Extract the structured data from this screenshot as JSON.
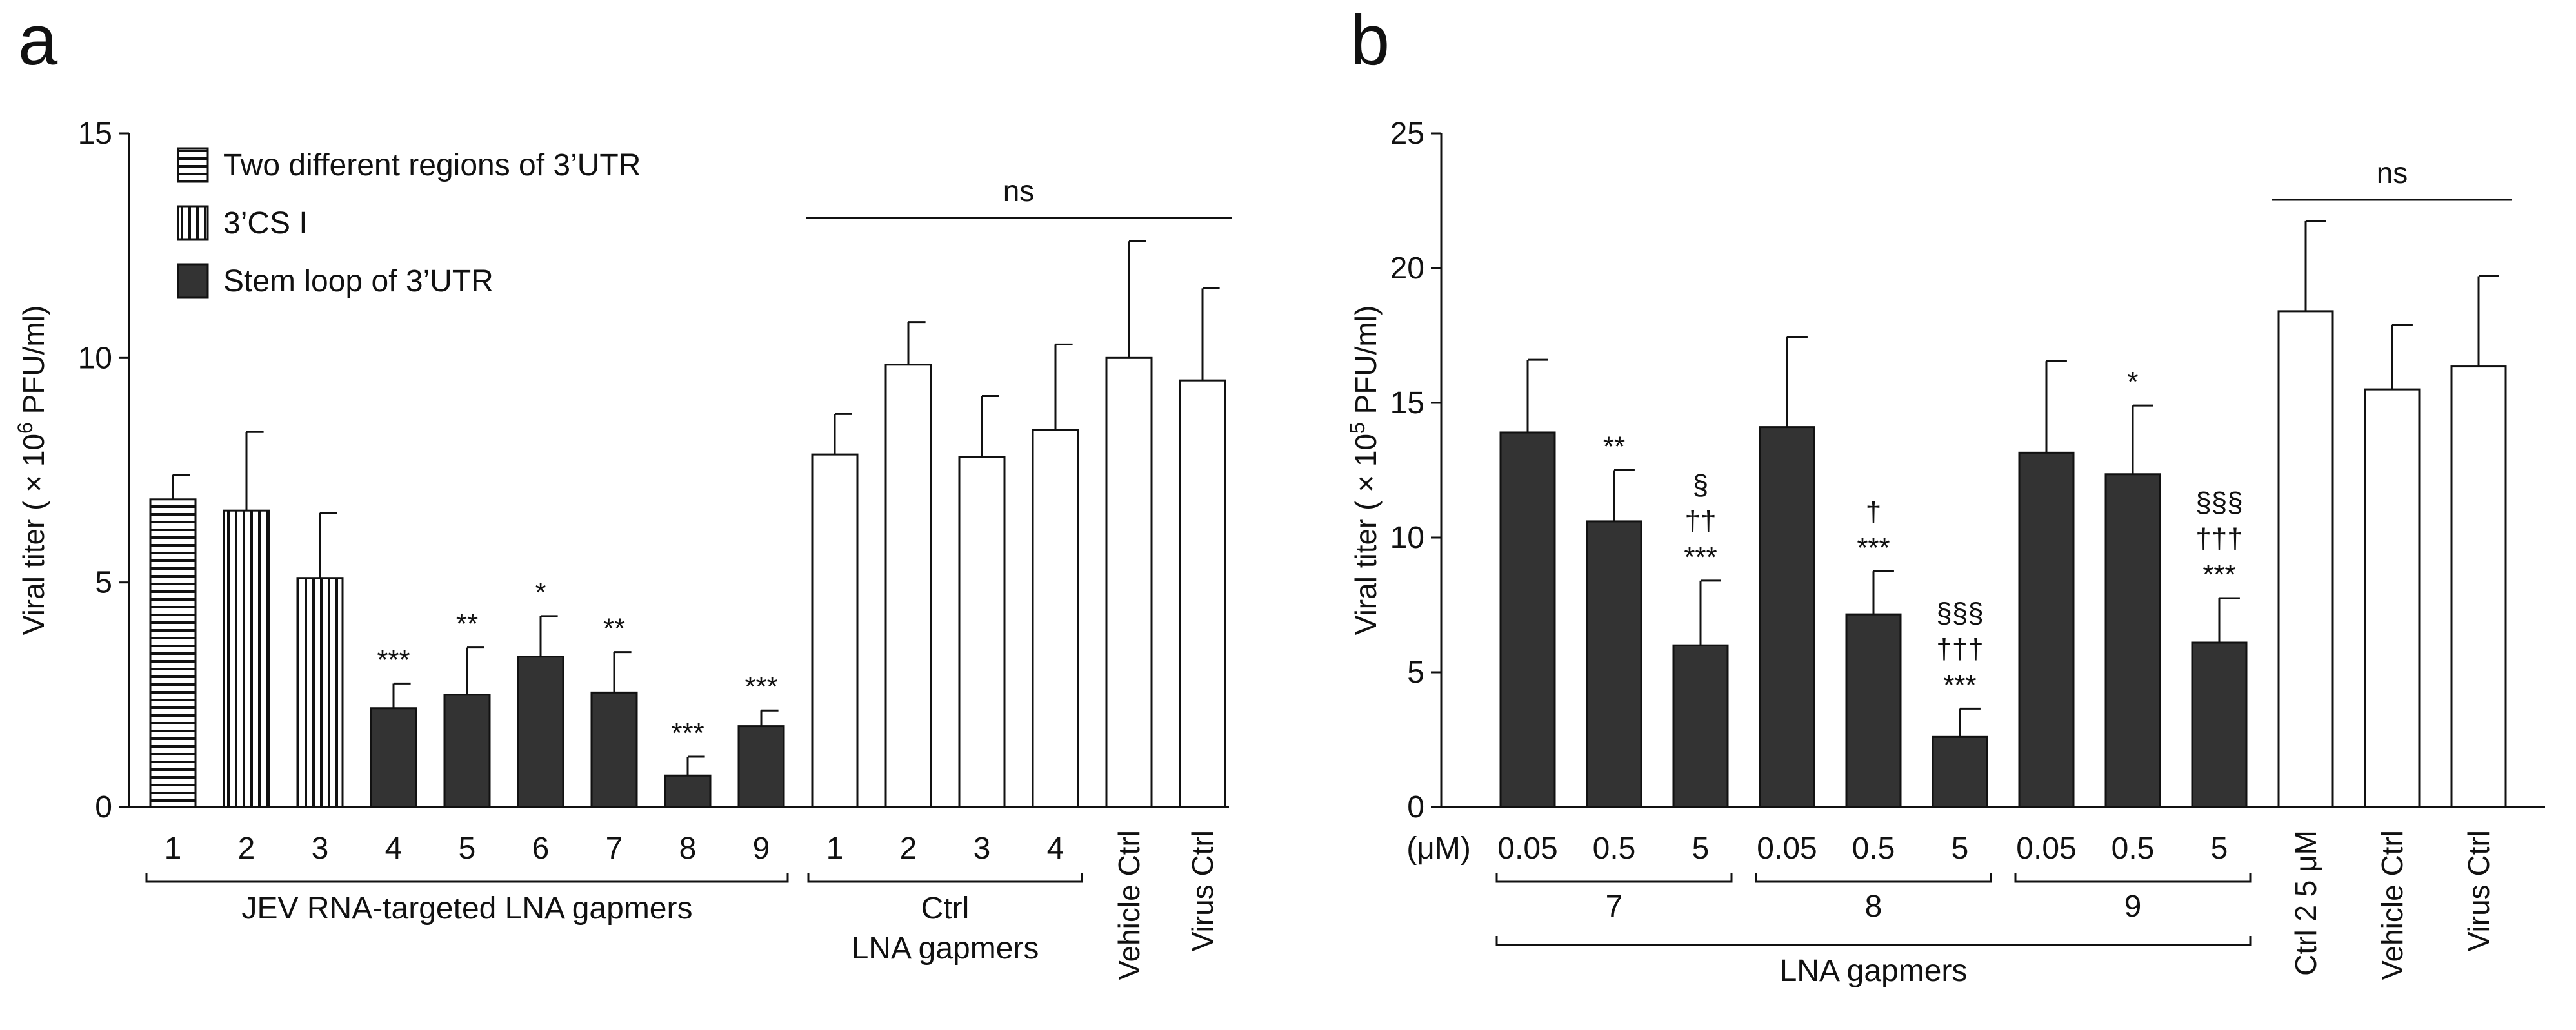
{
  "chart_data": [
    {
      "panel_label": "a",
      "type": "bar",
      "ylabel_prefix": "Viral titer ( × 10",
      "ylabel_exp": "6",
      "ylabel_suffix": " PFU/ml)",
      "ylim": [
        0,
        15
      ],
      "yticks": [
        0,
        5,
        10,
        15
      ],
      "bars": [
        {
          "label": "1",
          "value": 6.85,
          "err": 0.55,
          "fill": "hstripe",
          "sig": []
        },
        {
          "label": "2",
          "value": 6.6,
          "err": 1.75,
          "fill": "vstripe",
          "sig": []
        },
        {
          "label": "3",
          "value": 5.1,
          "err": 1.45,
          "fill": "vstripe",
          "sig": []
        },
        {
          "label": "4",
          "value": 2.2,
          "err": 0.55,
          "fill": "dark",
          "sig": [
            "***"
          ]
        },
        {
          "label": "5",
          "value": 2.5,
          "err": 1.05,
          "fill": "dark",
          "sig": [
            "**"
          ]
        },
        {
          "label": "6",
          "value": 3.35,
          "err": 0.9,
          "fill": "dark",
          "sig": [
            "*"
          ]
        },
        {
          "label": "7",
          "value": 2.55,
          "err": 0.9,
          "fill": "dark",
          "sig": [
            "**"
          ]
        },
        {
          "label": "8",
          "value": 0.7,
          "err": 0.42,
          "fill": "dark",
          "sig": [
            "***"
          ]
        },
        {
          "label": "9",
          "value": 1.8,
          "err": 0.35,
          "fill": "dark",
          "sig": [
            "***"
          ]
        },
        {
          "label": "1",
          "value": 7.85,
          "err": 0.9,
          "fill": "white",
          "sig": []
        },
        {
          "label": "2",
          "value": 9.85,
          "err": 0.95,
          "fill": "white",
          "sig": []
        },
        {
          "label": "3",
          "value": 7.8,
          "err": 1.35,
          "fill": "white",
          "sig": []
        },
        {
          "label": "4",
          "value": 8.4,
          "err": 1.9,
          "fill": "white",
          "sig": []
        },
        {
          "label": "Vehicle Ctrl",
          "value": 10.0,
          "err": 2.6,
          "fill": "white",
          "sig": [],
          "rotated": true
        },
        {
          "label": "Virus Ctrl",
          "value": 9.5,
          "err": 2.05,
          "fill": "white",
          "sig": [],
          "rotated": true
        }
      ],
      "legend": [
        {
          "label": "Two different regions of 3’UTR",
          "fill": "hstripe"
        },
        {
          "label": "3’CS I",
          "fill": "vstripe"
        },
        {
          "label": "Stem loop of 3’UTR",
          "fill": "dark"
        }
      ],
      "groups": [
        {
          "label": "JEV RNA-targeted LNA gapmers",
          "from": 0,
          "to": 8
        },
        {
          "label": "Ctrl",
          "label2": "LNA gapmers",
          "from": 9,
          "to": 12
        }
      ],
      "ns_label": "ns"
    },
    {
      "panel_label": "b",
      "type": "bar",
      "ylabel_prefix": "Viral titer ( × 10",
      "ylabel_exp": "5",
      "ylabel_suffix": " PFU/ml)",
      "ylim": [
        0,
        25
      ],
      "yticks": [
        0,
        5,
        10,
        15,
        20,
        25
      ],
      "unit_label": "(μM)",
      "bars": [
        {
          "label": "0.05",
          "value": 13.9,
          "err": 2.7,
          "fill": "dark",
          "sig": []
        },
        {
          "label": "0.5",
          "value": 10.6,
          "err": 1.9,
          "fill": "dark",
          "sig": [
            "**"
          ]
        },
        {
          "label": "5",
          "value": 6.0,
          "err": 2.4,
          "fill": "dark",
          "sig": [
            "§",
            "††",
            "***"
          ]
        },
        {
          "label": "0.05",
          "value": 14.1,
          "err": 3.35,
          "fill": "dark",
          "sig": []
        },
        {
          "label": "0.5",
          "value": 7.15,
          "err": 1.6,
          "fill": "dark",
          "sig": [
            "†",
            "***"
          ]
        },
        {
          "label": "5",
          "value": 2.6,
          "err": 1.05,
          "fill": "dark",
          "sig": [
            "§§§",
            "†††",
            "***"
          ]
        },
        {
          "label": "0.05",
          "value": 13.15,
          "err": 3.4,
          "fill": "dark",
          "sig": []
        },
        {
          "label": "0.5",
          "value": 12.35,
          "err": 2.55,
          "fill": "dark",
          "sig": [
            "*"
          ]
        },
        {
          "label": "5",
          "value": 6.1,
          "err": 1.65,
          "fill": "dark",
          "sig": [
            "§§§",
            "†††",
            "***"
          ]
        },
        {
          "label": "Ctrl 2 5 μM",
          "value": 18.4,
          "err": 3.35,
          "fill": "white",
          "sig": [],
          "rotated": true
        },
        {
          "label": "Vehicle Ctrl",
          "value": 15.5,
          "err": 2.4,
          "fill": "white",
          "sig": [],
          "rotated": true
        },
        {
          "label": "Virus Ctrl",
          "value": 16.35,
          "err": 3.35,
          "fill": "white",
          "sig": [],
          "rotated": true
        }
      ],
      "groups": [
        {
          "label": "7",
          "from": 0,
          "to": 2
        },
        {
          "label": "8",
          "from": 3,
          "to": 5
        },
        {
          "label": "9",
          "from": 6,
          "to": 8
        },
        {
          "label": "LNA gapmers",
          "from": 0,
          "to": 8,
          "level": 2
        }
      ],
      "ns_label": "ns"
    }
  ]
}
